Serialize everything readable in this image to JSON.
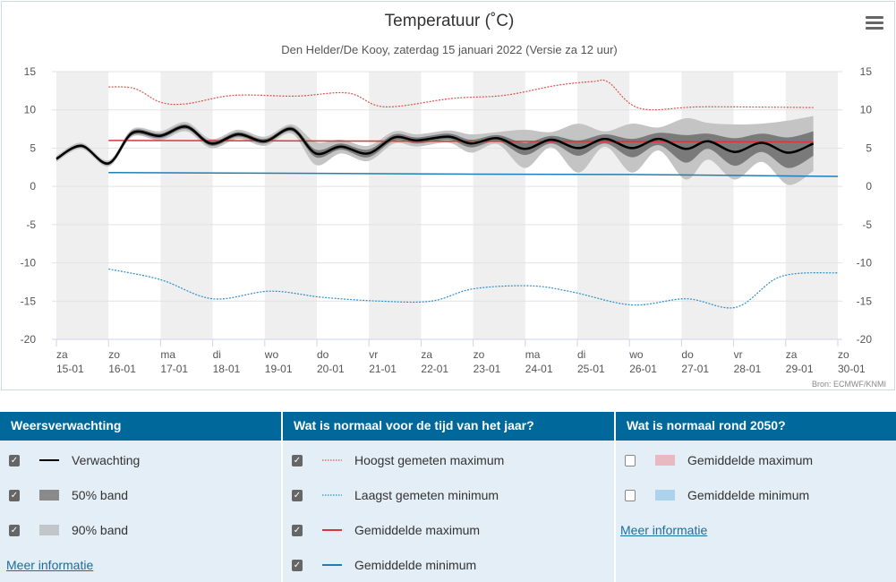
{
  "chart_data": {
    "type": "line",
    "title": "Temperatuur (˚C)",
    "subtitle": "Den Helder/De Kooy, zaterdag 15 januari 2022 (Versie za 12 uur)",
    "credit": "Bron: ECMWF/KNMI",
    "ylim": [
      -20,
      15
    ],
    "yticks": [
      "15",
      "10",
      "5",
      "0",
      "-5",
      "-10",
      "-15",
      "-20"
    ],
    "ytick_values": [
      15,
      10,
      5,
      0,
      -5,
      -10,
      -15,
      -20
    ],
    "xlim": [
      15,
      30
    ],
    "xticks": [
      [
        "za",
        "15-01"
      ],
      [
        "zo",
        "16-01"
      ],
      [
        "ma",
        "17-01"
      ],
      [
        "di",
        "18-01"
      ],
      [
        "wo",
        "19-01"
      ],
      [
        "do",
        "20-01"
      ],
      [
        "vr",
        "21-01"
      ],
      [
        "za",
        "22-01"
      ],
      [
        "zo",
        "23-01"
      ],
      [
        "ma",
        "24-01"
      ],
      [
        "di",
        "25-01"
      ],
      [
        "wo",
        "26-01"
      ],
      [
        "do",
        "27-01"
      ],
      [
        "vr",
        "28-01"
      ],
      [
        "za",
        "29-01"
      ],
      [
        "zo",
        "30-01"
      ]
    ],
    "colors": {
      "forecast": "#000000",
      "band50": "#7a7a7a",
      "band90": "#c4c4c4",
      "record_max": "#d9534f",
      "record_min": "#2a8fc9",
      "mean_max": "#d9363e",
      "mean_min": "#1f7fb5",
      "stripe": "#efefef"
    },
    "forecast": {
      "x": [
        15.0,
        15.48,
        16.0,
        16.46,
        16.99,
        17.49,
        17.97,
        18.49,
        19.0,
        19.52,
        19.98,
        20.46,
        20.98,
        21.49,
        21.92,
        22.53,
        22.96,
        23.47,
        23.99,
        24.5,
        25.02,
        25.53,
        26.05,
        26.56,
        27.08,
        27.51,
        28.02,
        28.54,
        29.05,
        29.53
      ],
      "y": [
        3.6,
        5.3,
        3.0,
        7.0,
        6.6,
        7.8,
        5.6,
        6.8,
        5.9,
        7.5,
        4.3,
        5.2,
        4.3,
        6.4,
        6.0,
        6.5,
        5.6,
        6.3,
        4.9,
        6.1,
        5.0,
        6.2,
        5.0,
        6.2,
        4.9,
        5.9,
        4.5,
        5.7,
        4.4,
        5.6
      ],
      "band50_halfwidth": [
        0.2,
        0.2,
        0.2,
        0.3,
        0.3,
        0.3,
        0.3,
        0.3,
        0.3,
        0.3,
        0.5,
        0.4,
        0.5,
        0.4,
        0.4,
        0.4,
        0.5,
        0.4,
        0.8,
        0.5,
        1.0,
        0.6,
        1.2,
        0.8,
        1.8,
        1.0,
        1.8,
        1.2,
        2.0,
        1.6
      ],
      "band90_halfwidth": [
        0.4,
        0.4,
        0.4,
        0.5,
        0.6,
        0.6,
        0.6,
        0.6,
        0.6,
        0.6,
        1.5,
        0.9,
        1.0,
        0.8,
        0.8,
        0.8,
        1.2,
        0.8,
        2.5,
        1.0,
        3.2,
        1.0,
        3.2,
        1.5,
        4.0,
        2.4,
        3.6,
        2.5,
        4.2,
        3.6
      ]
    },
    "record_max": {
      "x": [
        16.0,
        16.5,
        17.0,
        17.5,
        18.4,
        19.6,
        20.6,
        21.3,
        22.6,
        23.6,
        24.6,
        25.3,
        25.6,
        26.2,
        27.4,
        29.53
      ],
      "y": [
        13.0,
        12.8,
        11.0,
        10.8,
        11.9,
        11.8,
        12.2,
        10.4,
        11.5,
        11.9,
        13.2,
        13.7,
        13.6,
        10.2,
        10.4,
        10.3
      ]
    },
    "record_min": {
      "x": [
        16.0,
        17.0,
        18.0,
        19.1,
        20.1,
        21.2,
        22.2,
        23.0,
        24.1,
        24.9,
        26.05,
        27.1,
        28.05,
        28.9,
        30.0
      ],
      "y": [
        -10.8,
        -12.2,
        -14.7,
        -13.7,
        -14.5,
        -15.0,
        -15.0,
        -13.4,
        -13.0,
        -13.8,
        -15.5,
        -14.7,
        -15.8,
        -11.8,
        -11.3
      ]
    },
    "mean_max": {
      "x": [
        16.0,
        29.53
      ],
      "y": [
        6.0,
        5.8
      ]
    },
    "mean_min": {
      "x": [
        16.0,
        20.0,
        23.0,
        26.0,
        30.0
      ],
      "y": [
        1.8,
        1.7,
        1.6,
        1.55,
        1.3
      ]
    }
  },
  "legend": {
    "sections": [
      {
        "title": "Weersverwachting",
        "items": [
          {
            "label": "Verwachting",
            "checked": true
          },
          {
            "label": "50% band",
            "checked": true
          },
          {
            "label": "90% band",
            "checked": true
          }
        ],
        "link": "Meer informatie"
      },
      {
        "title": "Wat is normaal voor de tijd van het jaar?",
        "items": [
          {
            "label": "Hoogst gemeten maximum",
            "checked": true
          },
          {
            "label": "Laagst gemeten minimum",
            "checked": true
          },
          {
            "label": "Gemiddelde maximum",
            "checked": true
          },
          {
            "label": "Gemiddelde minimum",
            "checked": true
          }
        ]
      },
      {
        "title": "Wat is normaal rond 2050?",
        "items": [
          {
            "label": "Gemiddelde maximum",
            "checked": false
          },
          {
            "label": "Gemiddelde minimum",
            "checked": false
          }
        ],
        "link": "Meer informatie"
      }
    ],
    "check_glyph": "✓"
  }
}
